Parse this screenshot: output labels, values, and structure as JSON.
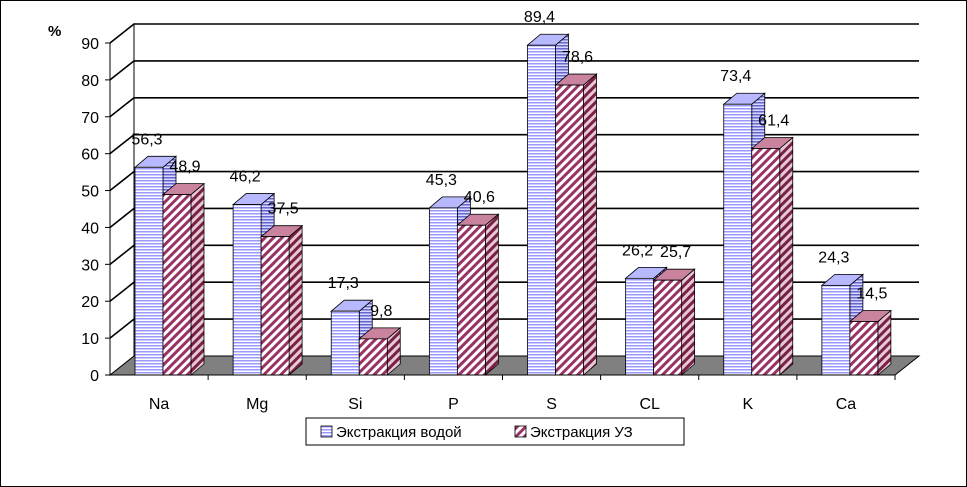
{
  "chart_data": {
    "type": "bar",
    "title": "",
    "xlabel": "",
    "ylabel": "%",
    "ylim": [
      0,
      90
    ],
    "yticks": [
      0,
      10,
      20,
      30,
      40,
      50,
      60,
      70,
      80,
      90
    ],
    "grid": true,
    "legend_position": "bottom",
    "categories": [
      "Na",
      "Mg",
      "Si",
      "P",
      "S",
      "CL",
      "K",
      "Ca"
    ],
    "series": [
      {
        "name": "Экстракция водой",
        "values": [
          56.3,
          46.2,
          17.3,
          45.3,
          89.4,
          26.2,
          73.4,
          24.3
        ],
        "labels": [
          "56,3",
          "46,2",
          "17,3",
          "45,3",
          "89,4",
          "26,2",
          "73,4",
          "24,3"
        ],
        "color": "#9999ff",
        "pattern": "horizontal-stripes"
      },
      {
        "name": "Экстракция УЗ",
        "values": [
          48.9,
          37.5,
          9.8,
          40.6,
          78.6,
          25.7,
          61.4,
          14.5
        ],
        "labels": [
          "48,9",
          "37,5",
          "9,8",
          "40,6",
          "78,6",
          "25,7",
          "61,4",
          "14,5"
        ],
        "color": "#993366",
        "pattern": "diagonal-stripes"
      }
    ]
  }
}
